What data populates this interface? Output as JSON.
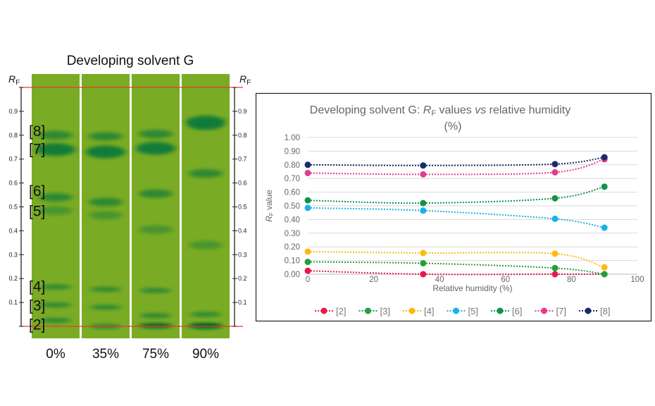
{
  "plate": {
    "title": "Developing solvent G",
    "rf_label": "R",
    "rf_sub": "F",
    "ticks": [
      "0.1",
      "0.2",
      "0.3",
      "0.4",
      "0.5",
      "0.6",
      "0.7",
      "0.8",
      "0.9"
    ],
    "lanes": [
      "0%",
      "35%",
      "75%",
      "90%"
    ],
    "compound_labels": [
      "[2]",
      "[3]",
      "[4]",
      "[5]",
      "[6]",
      "[7]",
      "[8]"
    ],
    "colors": {
      "plate": "#7aab24",
      "spot": "#0a7a3a",
      "front_line": "#e83a2a"
    }
  },
  "chart_data": {
    "type": "line",
    "title_parts": {
      "pre": "Developing solvent G: ",
      "r": "R",
      "sub": "F",
      "mid": " values ",
      "vs": "vs",
      "post": " relative humidity",
      "line2": "(%)"
    },
    "xlabel": "Relative humidity (%)",
    "ylabel_parts": {
      "r": "R",
      "sub": "F",
      "post": " value"
    },
    "xlim": [
      0,
      100
    ],
    "ylim": [
      0,
      1
    ],
    "xticks": [
      "0",
      "20",
      "40",
      "60",
      "80",
      "100"
    ],
    "yticks": [
      "0.00",
      "0.10",
      "0.20",
      "0.30",
      "0.40",
      "0.50",
      "0.60",
      "0.70",
      "0.80",
      "0.90",
      "1.00"
    ],
    "grid": true,
    "legend_position": "bottom",
    "x": [
      0,
      35,
      75,
      90
    ],
    "series": [
      {
        "name": "[2]",
        "color": "#e8194a",
        "values": [
          0.025,
          0.0,
          0.0,
          0.0
        ]
      },
      {
        "name": "[3]",
        "color": "#22a03a",
        "values": [
          0.09,
          0.08,
          0.045,
          0.0
        ]
      },
      {
        "name": "[4]",
        "color": "#fdb913",
        "values": [
          0.165,
          0.155,
          0.15,
          0.05
        ]
      },
      {
        "name": "[5]",
        "color": "#1ab0e8",
        "values": [
          0.485,
          0.465,
          0.405,
          0.34
        ]
      },
      {
        "name": "[6]",
        "color": "#0e9444",
        "values": [
          0.54,
          0.52,
          0.555,
          0.64
        ]
      },
      {
        "name": "[7]",
        "color": "#e23c8f",
        "values": [
          0.74,
          0.73,
          0.745,
          0.84
        ]
      },
      {
        "name": "[8]",
        "color": "#1a2a6c",
        "values": [
          0.8,
          0.795,
          0.805,
          0.855
        ]
      }
    ]
  }
}
